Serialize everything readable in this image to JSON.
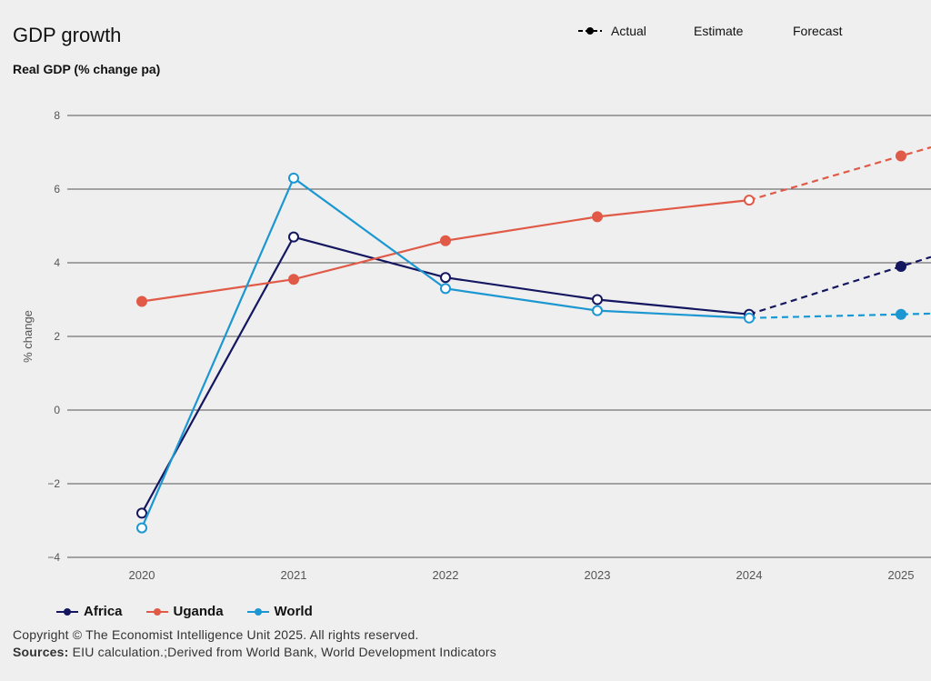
{
  "header": {
    "title": "GDP growth",
    "subtitle": "Real GDP (% change pa)"
  },
  "key": {
    "actual": "Actual",
    "estimate": "Estimate",
    "forecast": "Forecast"
  },
  "footer": {
    "copyright": "Copyright © The Economist Intelligence Unit 2025. All rights reserved.",
    "sources_label": "Sources:",
    "sources_text": " EIU calculation.;Derived from World Bank, World Development Indicators"
  },
  "colors": {
    "Africa": "#141760",
    "Uganda": "#e05a47",
    "World": "#1c97d1",
    "grid": "#555555",
    "axis_text": "#555555"
  },
  "chart_data": {
    "type": "line",
    "title": "GDP growth",
    "subtitle": "Real GDP (% change pa)",
    "xlabel": "",
    "ylabel": "% change",
    "x": [
      "2020",
      "2021",
      "2022",
      "2023",
      "2024",
      "2025"
    ],
    "yticks": [
      "8",
      "6",
      "4",
      "2",
      "0",
      "−2",
      "−4"
    ],
    "ylim": [
      -4,
      8
    ],
    "grid": true,
    "legend_position": "bottom-left",
    "series": [
      {
        "name": "Africa",
        "values": [
          -2.8,
          4.7,
          3.6,
          3.0,
          2.6,
          3.9
        ]
      },
      {
        "name": "Uganda",
        "values": [
          2.95,
          3.55,
          4.6,
          5.25,
          5.7,
          6.9
        ]
      },
      {
        "name": "World",
        "values": [
          -3.2,
          6.3,
          3.3,
          2.7,
          2.5,
          2.6
        ]
      }
    ],
    "actual_through": "2023",
    "estimate": "2024",
    "forecast_from": "2025"
  }
}
